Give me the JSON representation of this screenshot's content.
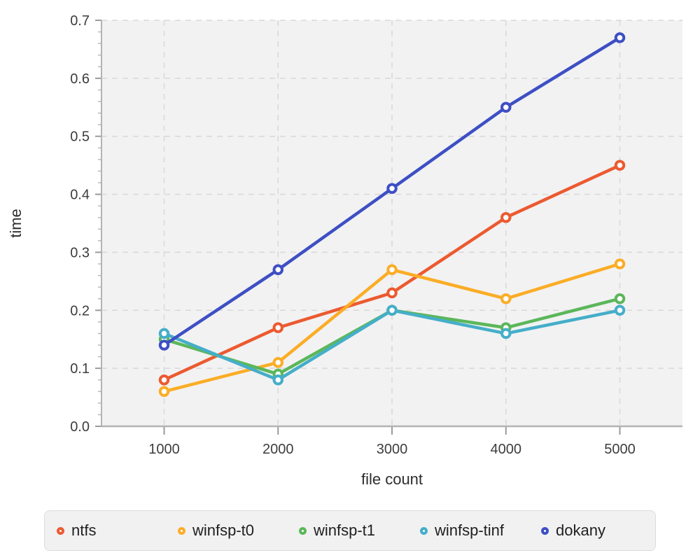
{
  "figure": {
    "background": "#ffffff",
    "plot_background": "#f2f2f3",
    "grid_color": "#d8d8d8",
    "axis_line_color": "#b3b3b3",
    "major_tick_color": "#9b9b9b",
    "minor_tick_color": "#b8b8b8",
    "tick_label_color": "#3d3d3d",
    "axis_title_color": "#2d2d2d"
  },
  "chart_data": {
    "type": "line",
    "title": "",
    "xlabel": "file count",
    "ylabel": "time",
    "x": [
      1000,
      2000,
      3000,
      4000,
      5000
    ],
    "x_tick_labels": [
      "1000",
      "2000",
      "3000",
      "4000",
      "5000"
    ],
    "y_ticks": [
      0.0,
      0.1,
      0.2,
      0.3,
      0.4,
      0.5,
      0.6,
      0.7
    ],
    "y_tick_labels": [
      "0.0",
      "0.1",
      "0.2",
      "0.3",
      "0.4",
      "0.5",
      "0.6",
      "0.7"
    ],
    "xlim": [
      450,
      5550
    ],
    "ylim": [
      0,
      0.7
    ],
    "grid": true,
    "grid_style": "dashed",
    "minor_y_tick_step": 0.02,
    "marker_style": "open-circle",
    "legend_position": "bottom",
    "series": [
      {
        "name": "ntfs",
        "color": "#EC5A30",
        "values": [
          0.08,
          0.17,
          0.23,
          0.36,
          0.45
        ]
      },
      {
        "name": "winfsp-t0",
        "color": "#FBAD26",
        "values": [
          0.06,
          0.11,
          0.27,
          0.22,
          0.28
        ]
      },
      {
        "name": "winfsp-t1",
        "color": "#5BB75A",
        "values": [
          0.15,
          0.09,
          0.2,
          0.17,
          0.22
        ]
      },
      {
        "name": "winfsp-tinf",
        "color": "#45AEC9",
        "values": [
          0.16,
          0.08,
          0.2,
          0.16,
          0.2
        ]
      },
      {
        "name": "dokany",
        "color": "#3E4FC4",
        "values": [
          0.14,
          0.27,
          0.41,
          0.55,
          0.67
        ]
      }
    ]
  }
}
